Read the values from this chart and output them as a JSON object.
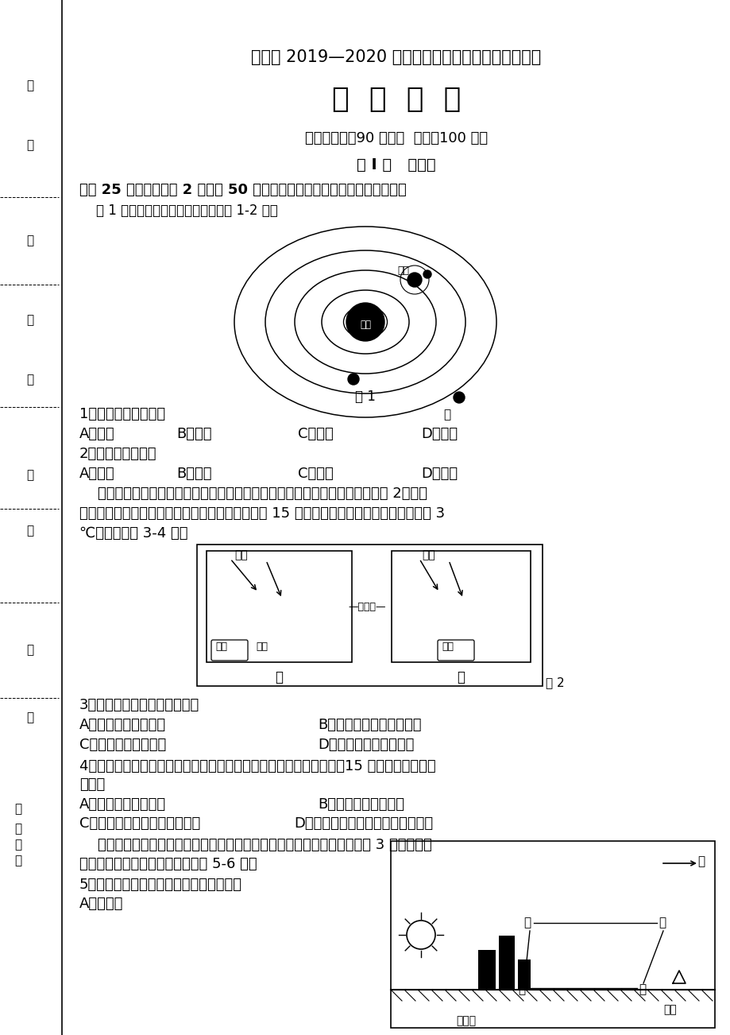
{
  "bg_color": "#ffffff",
  "title1": "宁德市 2019—2020 学年度第一学期期末高一质量检测",
  "title2": "地  理  试  题",
  "subtitle": "（考试时间：90 分钟；  满分：100 分）",
  "section1": "第 I 卷   选择题",
  "intro": "本卷 25 小题，每小题 2 分，共 50 分。每小题只有一个选项符合题目要求。",
  "fig1_caption": "    图 1 为太阳系局部示意图，读图完成 1-2 题。",
  "fig1_label": "图 1",
  "q1": "1．图中天体系统共有",
  "q1_opts": [
    "A．一级",
    "B．二级",
    "C．三级",
    "D．四级"
  ],
  "q2": "2．图中的天体甲是",
  "q2_opts": [
    "A．水星",
    "B．金星",
    "C．火星",
    "D．木星"
  ],
  "para1_line1": "    某学校地理兴趣小组做了如下实验：取两个相同规格的封闭透明玻璃箱（如图 2），甲",
  "para1_line2": "底部放一层土，中午把两个玻璃箱同时放在日光下 15 分钟。最后测得甲里的气温比乙高了 3",
  "para1_line3": "℃。据此完成 3-4 题。",
  "fig2_label": "图 2",
  "q3": "3．甲箱气温比乙箱高的原因是",
  "q3_opt_a": "A．甲箱的保温作用好",
  "q3_opt_b": "B．甲箱土层辐射作用明显",
  "q3_opt_c": "C．乙箱太阳辐射更弱",
  "q3_opt_d": "D．乙箱大气吸热能力差",
  "q4_line1": "4．若其他条件不变，在甲箱底部放入干燥沙子，乙箱底部铺上草皮，15 分钟后下列结论正",
  "q4_line2": "确的是",
  "q4_opt_a": "A．甲箱气温高于乙箱",
  "q4_opt_b": "B．乙箱气温高于甲箱",
  "q4_opt_c": "C．乙箱气温上升速度快于甲箱",
  "q4_opt_d": "D．甲箱与乙箱的气温上升速度一样",
  "para2_line1": "    水库及周边地区，由于地面热容量的差异，风向在一天内会发生改变。图 3 为我国某地",
  "para2_line2": "度假村热力环流示意图，据此完成 5-6 题。",
  "q5": "5．图示时刻甲处与丁处之间主要的风向是",
  "q5_opt": "A．东北风",
  "left_labels": [
    "座",
    "号",
    "订",
    "班",
    "级",
    "姓",
    "名",
    "校",
    "学",
    "县\n（市）"
  ]
}
